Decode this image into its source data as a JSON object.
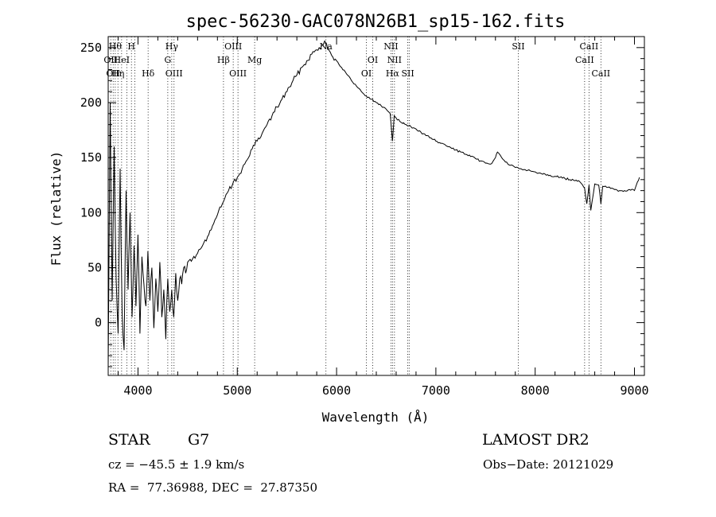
{
  "chart_data": {
    "type": "line",
    "title": "spec-56230-GAC078N26B1_sp15-162.fits",
    "xlabel": "Wavelength (Å)",
    "ylabel": "Flux (relative)",
    "xlim": [
      3700,
      9100
    ],
    "ylim": [
      -48,
      260
    ],
    "xticks": [
      4000,
      5000,
      6000,
      7000,
      8000,
      9000
    ],
    "yticks": [
      0,
      50,
      100,
      150,
      200,
      250
    ],
    "grid": false,
    "series": [
      {
        "x": [
          3700,
          3720,
          3740,
          3760,
          3780,
          3800,
          3820,
          3840,
          3860,
          3880,
          3900,
          3920,
          3940,
          3960,
          3980,
          4000,
          4020,
          4040,
          4060,
          4080,
          4100,
          4120,
          4140,
          4160,
          4180,
          4200,
          4220,
          4240,
          4260,
          4280,
          4300,
          4320,
          4340,
          4360,
          4380,
          4400,
          4420,
          4440,
          4460,
          4480,
          4500,
          4550,
          4600,
          4650,
          4700,
          4750,
          4800,
          4850,
          4900,
          4950,
          5000,
          5050,
          5100,
          5150,
          5200,
          5250,
          5300,
          5350,
          5400,
          5450,
          5500,
          5550,
          5600,
          5650,
          5700,
          5750,
          5800,
          5850,
          5880,
          5900,
          5920,
          5950,
          6000,
          6050,
          6100,
          6150,
          6200,
          6250,
          6300,
          6350,
          6400,
          6450,
          6500,
          6540,
          6563,
          6580,
          6600,
          6650,
          6700,
          6750,
          6800,
          6850,
          6900,
          6950,
          7000,
          7050,
          7100,
          7150,
          7200,
          7250,
          7300,
          7350,
          7400,
          7450,
          7500,
          7550,
          7600,
          7620,
          7650,
          7700,
          7750,
          7800,
          7850,
          7900,
          7950,
          8000,
          8050,
          8100,
          8150,
          8200,
          8250,
          8300,
          8350,
          8400,
          8450,
          8498,
          8520,
          8542,
          8560,
          8600,
          8640,
          8662,
          8680,
          8720,
          8760,
          8800,
          8850,
          8900,
          8950,
          9000,
          9030,
          9050
        ],
        "y": [
          -40,
          200,
          20,
          160,
          40,
          -10,
          140,
          10,
          -25,
          120,
          30,
          100,
          5,
          70,
          15,
          80,
          -10,
          60,
          35,
          15,
          65,
          20,
          50,
          -5,
          40,
          10,
          55,
          5,
          30,
          -15,
          40,
          10,
          30,
          5,
          45,
          20,
          40,
          35,
          50,
          45,
          55,
          58,
          63,
          70,
          78,
          88,
          98,
          108,
          118,
          125,
          132,
          140,
          148,
          158,
          165,
          172,
          180,
          188,
          196,
          203,
          210,
          218,
          225,
          232,
          238,
          244,
          248,
          252,
          256,
          253,
          248,
          243,
          238,
          232,
          226,
          220,
          215,
          210,
          206,
          203,
          200,
          197,
          194,
          190,
          165,
          188,
          186,
          182,
          180,
          178,
          176,
          173,
          170,
          168,
          165,
          163,
          161,
          159,
          157,
          155,
          153,
          151,
          149,
          147,
          145,
          144,
          150,
          155,
          152,
          146,
          143,
          141,
          140,
          139,
          138,
          137,
          136,
          135,
          134,
          133,
          132,
          131,
          130,
          129,
          128,
          122,
          108,
          125,
          102,
          126,
          125,
          108,
          124,
          123,
          122,
          121,
          120,
          120,
          121,
          120,
          128,
          132
        ]
      }
    ],
    "lines": [
      {
        "x": 3726,
        "label": "OII",
        "row": 1
      },
      {
        "x": 3750,
        "label": "OII",
        "row": 2
      },
      {
        "x": 3771,
        "label": "Hθ",
        "row": 0
      },
      {
        "x": 3798,
        "label": "Hη",
        "row": 2
      },
      {
        "x": 3835,
        "label": "HeI",
        "row": 1
      },
      {
        "x": 3889,
        "label": "",
        "row": 0
      },
      {
        "x": 3934,
        "label": "H",
        "row": 0
      },
      {
        "x": 3968,
        "label": "",
        "row": 0
      },
      {
        "x": 4102,
        "label": "Hδ",
        "row": 2
      },
      {
        "x": 4300,
        "label": "G",
        "row": 1
      },
      {
        "x": 4340,
        "label": "Hγ",
        "row": 0
      },
      {
        "x": 4363,
        "label": "OIII",
        "row": 2
      },
      {
        "x": 4861,
        "label": "Hβ",
        "row": 1
      },
      {
        "x": 4959,
        "label": "OIII",
        "row": 0
      },
      {
        "x": 5007,
        "label": "OIII",
        "row": 2
      },
      {
        "x": 5175,
        "label": "Mg",
        "row": 1
      },
      {
        "x": 5893,
        "label": "Na",
        "row": 0
      },
      {
        "x": 6300,
        "label": "OI",
        "row": 2
      },
      {
        "x": 6364,
        "label": "OI",
        "row": 1
      },
      {
        "x": 6548,
        "label": "NII",
        "row": 0
      },
      {
        "x": 6563,
        "label": "Hα",
        "row": 2
      },
      {
        "x": 6583,
        "label": "NII",
        "row": 1
      },
      {
        "x": 6717,
        "label": "SII",
        "row": 2
      },
      {
        "x": 6731,
        "label": "",
        "row": 0
      },
      {
        "x": 7830,
        "label": "SII",
        "row": 0
      },
      {
        "x": 8498,
        "label": "CaII",
        "row": 1
      },
      {
        "x": 8542,
        "label": "CaII",
        "row": 0
      },
      {
        "x": 8662,
        "label": "CaII",
        "row": 2
      }
    ]
  },
  "info": {
    "object_class": "STAR",
    "subclass": "G7",
    "survey": "LAMOST DR2",
    "cz": "cz = −45.5 ± 1.9 km/s",
    "obs_date": "Obs−Date: 20121029",
    "coords": "RA =  77.36988, DEC =  27.87350"
  }
}
